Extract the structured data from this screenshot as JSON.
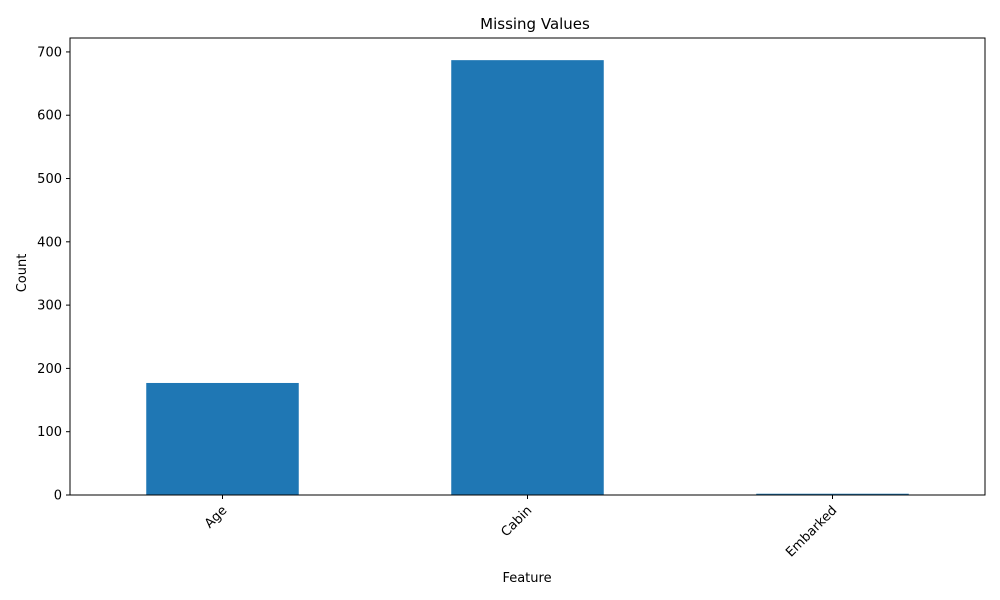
{
  "chart_data": {
    "type": "bar",
    "title": "Missing Values",
    "xlabel": "Feature",
    "ylabel": "Count",
    "categories": [
      "Age",
      "Cabin",
      "Embarked"
    ],
    "values": [
      177,
      687,
      2
    ],
    "ylim": [
      0,
      722
    ],
    "yticks": [
      0,
      100,
      200,
      300,
      400,
      500,
      600,
      700
    ],
    "xtick_rotation_deg": 45,
    "grid": false,
    "legend": "none",
    "bar_color": "#1f77b4"
  }
}
